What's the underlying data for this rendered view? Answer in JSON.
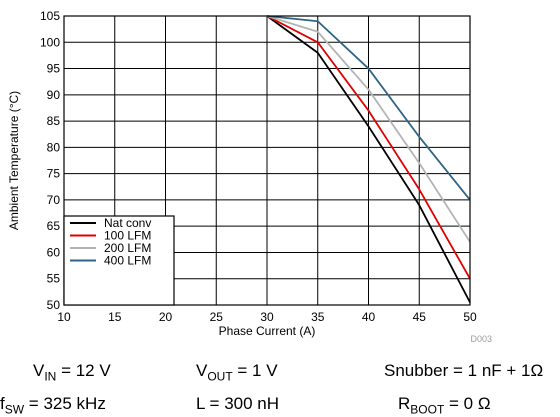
{
  "chart_data": {
    "type": "line",
    "title": "",
    "xlabel": "Phase Current (A)",
    "ylabel": "Ambient Temperature (°C)",
    "xlim": [
      10,
      50
    ],
    "ylim": [
      50,
      105
    ],
    "xticks": [
      10,
      15,
      20,
      25,
      30,
      35,
      40,
      45,
      50
    ],
    "yticks": [
      50,
      55,
      60,
      65,
      70,
      75,
      80,
      85,
      90,
      95,
      100,
      105
    ],
    "grid": true,
    "legend_position": "bottom-left",
    "figure_id": "D003",
    "series": [
      {
        "name": "Nat conv",
        "color": "#000000",
        "x": [
          30,
          35,
          40,
          45,
          50
        ],
        "y": [
          105,
          98,
          84,
          69,
          50.5
        ]
      },
      {
        "name": "100 LFM",
        "color": "#e00000",
        "x": [
          30,
          35,
          40,
          45,
          50
        ],
        "y": [
          105,
          100,
          87,
          72,
          55
        ]
      },
      {
        "name": "200 LFM",
        "color": "#b4b4b4",
        "x": [
          30,
          35,
          40,
          45,
          50
        ],
        "y": [
          105,
          102,
          91,
          77,
          62
        ]
      },
      {
        "name": "400 LFM",
        "color": "#2e6486",
        "x": [
          30,
          35,
          40,
          45,
          50
        ],
        "y": [
          105,
          104,
          95,
          82,
          70
        ]
      }
    ]
  },
  "conditions": [
    {
      "label": "V",
      "sub": "IN",
      "value": " = 12 V"
    },
    {
      "label": "V",
      "sub": "OUT",
      "value": " = 1 V"
    },
    {
      "label": "Snubber",
      "sub": "",
      "value": " = 1 nF + 1Ω"
    },
    {
      "label": "f",
      "sub": "SW",
      "value": " = 325 kHz"
    },
    {
      "label": "L",
      "sub": "",
      "value": " = 300 nH"
    },
    {
      "label": "R",
      "sub": "BOOT",
      "value": " = 0 Ω"
    }
  ]
}
